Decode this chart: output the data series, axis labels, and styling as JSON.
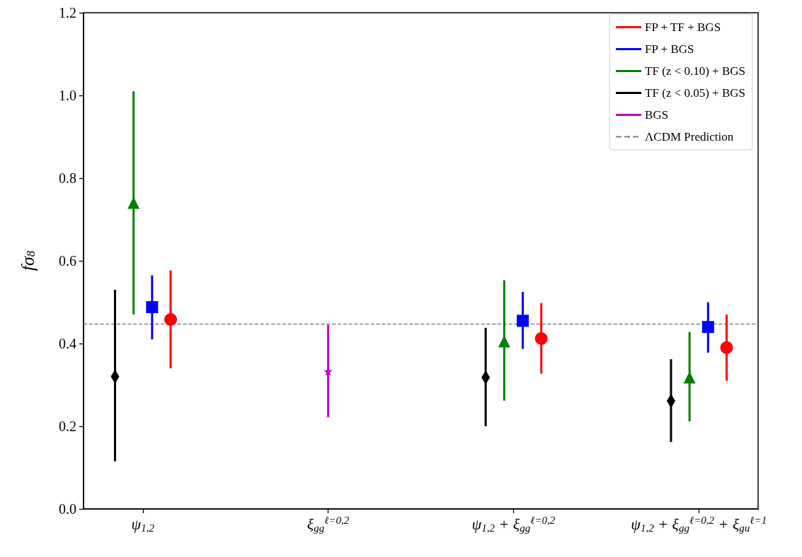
{
  "chart_data": {
    "type": "scatter",
    "ylabel": "fσ$_{8}$",
    "categories": [
      "ψ$_{1,2}$",
      "ξ$_{gg}$$^{ℓ=0,2}$",
      "ψ$_{1,2}$ + ξ$_{gg}$$^{ℓ=0,2}$",
      "ψ$_{1,2}$ + ξ$_{gg}$$^{ℓ=0,2}$ + ξ$_{gu}$$^{ℓ=1}$"
    ],
    "series": [
      {
        "name": "FP + TF + BGS",
        "color": "#ff0000",
        "marker": "circle",
        "x": [
          "ψ$_{1,2}$",
          "ψ$_{1,2}$ + ξ$_{gg}$$^{ℓ=0,2}$",
          "ψ$_{1,2}$ + ξ$_{gg}$$^{ℓ=0,2}$ + ξ$_{gu}$$^{ℓ=1}$"
        ],
        "values": [
          0.458,
          0.412,
          0.39
        ],
        "errors": [
          [
            0.34,
            0.577
          ],
          [
            0.327,
            0.498
          ],
          [
            0.31,
            0.47
          ]
        ]
      },
      {
        "name": "FP + BGS",
        "color": "#0000ff",
        "marker": "square",
        "x": [
          "ψ$_{1,2}$",
          "ψ$_{1,2}$ + ξ$_{gg}$$^{ℓ=0,2}$",
          "ψ$_{1,2}$ + ξ$_{gg}$$^{ℓ=0,2}$ + ξ$_{gu}$$^{ℓ=1}$"
        ],
        "values": [
          0.488,
          0.455,
          0.44
        ],
        "errors": [
          [
            0.41,
            0.565
          ],
          [
            0.387,
            0.525
          ],
          [
            0.378,
            0.5
          ]
        ]
      },
      {
        "name": "TF (z < 0.10) + BGS",
        "color": "#008000",
        "marker": "triangle",
        "x": [
          "ψ$_{1,2}$",
          "ψ$_{1,2}$ + ξ$_{gg}$$^{ℓ=0,2}$",
          "ψ$_{1,2}$ + ξ$_{gg}$$^{ℓ=0,2}$ + ξ$_{gu}$$^{ℓ=1}$"
        ],
        "values": [
          0.74,
          0.405,
          0.318
        ],
        "errors": [
          [
            0.47,
            1.01
          ],
          [
            0.262,
            0.553
          ],
          [
            0.212,
            0.428
          ]
        ]
      },
      {
        "name": "TF (z < 0.05) + BGS",
        "color": "#000000",
        "marker": "diamond",
        "x": [
          "ψ$_{1,2}$",
          "ψ$_{1,2}$ + ξ$_{gg}$$^{ℓ=0,2}$",
          "ψ$_{1,2}$ + ξ$_{gg}$$^{ℓ=0,2}$ + ξ$_{gu}$$^{ℓ=1}$"
        ],
        "values": [
          0.32,
          0.318,
          0.261
        ],
        "errors": [
          [
            0.115,
            0.53
          ],
          [
            0.2,
            0.438
          ],
          [
            0.162,
            0.362
          ]
        ]
      },
      {
        "name": "BGS",
        "color": "#bf00bf",
        "marker": "star",
        "x": [
          "ξ$_{gg}$$^{ℓ=0,2}$"
        ],
        "values": [
          0.333
        ],
        "errors": [
          [
            0.222,
            0.445
          ]
        ]
      }
    ],
    "ref_lines": [
      {
        "axis": "y",
        "value": 0.447,
        "label": "ΛCDM Prediction",
        "color": "#808080",
        "line_style": "dashed"
      }
    ],
    "ylim": [
      0,
      1.2
    ],
    "yticks": [
      {
        "value": 0,
        "label": "0.0"
      },
      {
        "value": 0.2,
        "label": "0.2"
      },
      {
        "value": 0.4,
        "label": "0.4"
      },
      {
        "value": 0.6,
        "label": "0.6"
      },
      {
        "value": 0.8,
        "label": "0.8"
      },
      {
        "value": 1.0,
        "label": "1.0"
      },
      {
        "value": 1.2,
        "label": "1.2"
      }
    ],
    "grid": false,
    "legend": "top right"
  }
}
